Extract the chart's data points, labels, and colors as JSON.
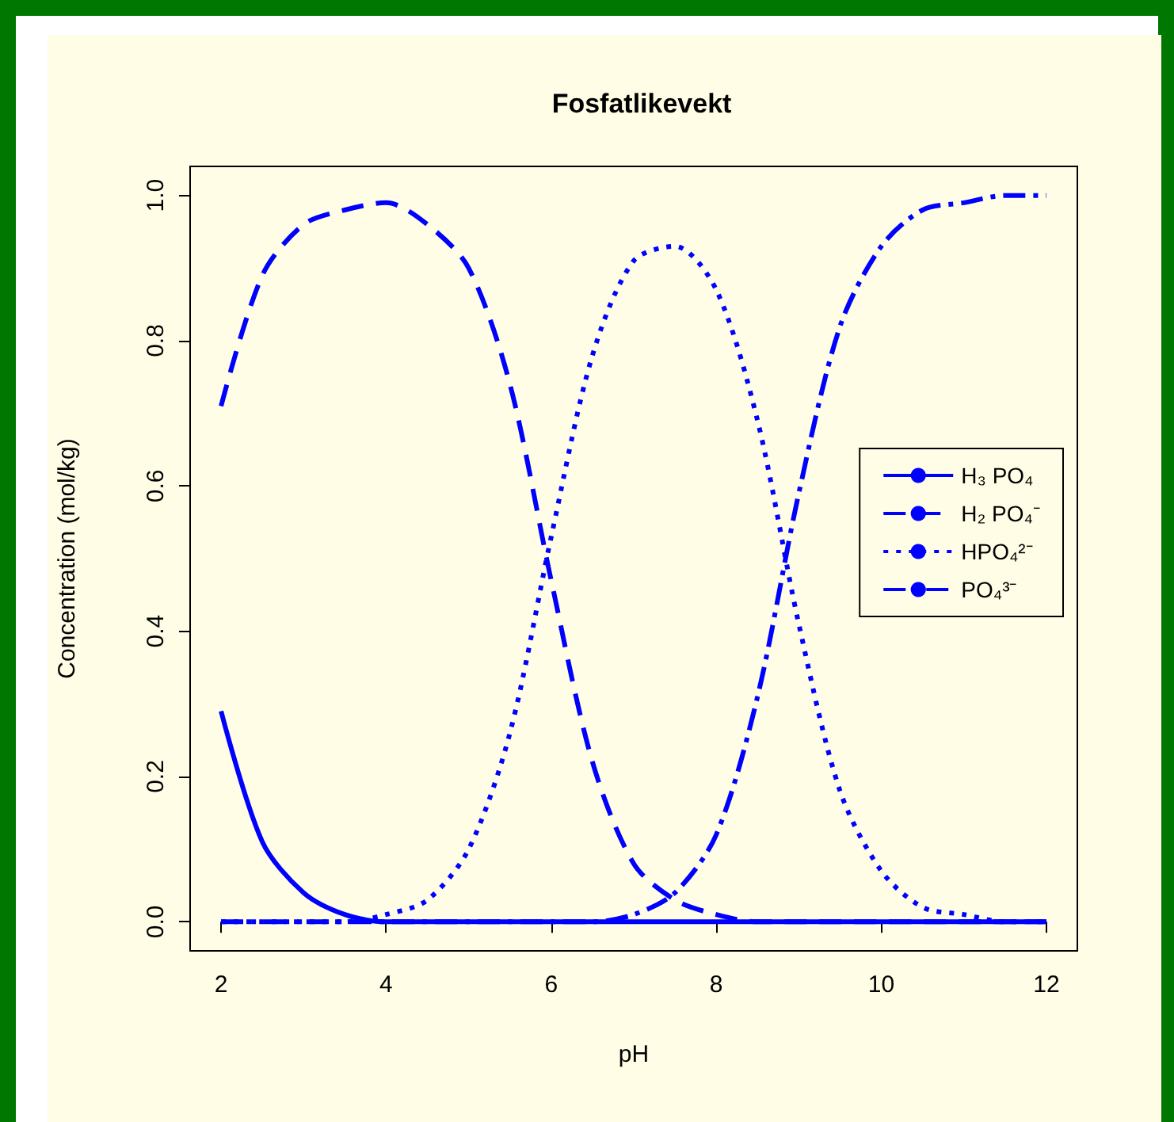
{
  "chart_data": {
    "type": "line",
    "title": "Fosfatlikevekt",
    "xlabel": "pH",
    "ylabel": "Concentration (mol/kg)",
    "x": [
      2,
      2.5,
      3,
      3.5,
      4,
      4.5,
      5,
      5.5,
      6,
      6.5,
      7,
      7.5,
      8,
      8.5,
      9,
      9.5,
      10,
      10.5,
      11,
      11.5,
      12
    ],
    "series": [
      {
        "name": "H₃ PO₄",
        "color": "#0000ff",
        "line_style": "solid",
        "values": [
          0.29,
          0.11,
          0.04,
          0.01,
          0,
          0,
          0,
          0,
          0,
          0,
          0,
          0,
          0,
          0,
          0,
          0,
          0,
          0,
          0,
          0,
          0
        ]
      },
      {
        "name": "H₂ PO₄⁻",
        "color": "#0000ff",
        "line_style": "dashed",
        "values": [
          0.71,
          0.89,
          0.96,
          0.98,
          0.99,
          0.96,
          0.9,
          0.74,
          0.47,
          0.22,
          0.08,
          0.03,
          0.01,
          0,
          0,
          0,
          0,
          0,
          0,
          0,
          0
        ]
      },
      {
        "name": "HPO₄²⁻",
        "color": "#0000ff",
        "line_style": "dotted",
        "values": [
          0,
          0,
          0,
          0,
          0.01,
          0.03,
          0.1,
          0.26,
          0.53,
          0.78,
          0.91,
          0.93,
          0.87,
          0.69,
          0.41,
          0.18,
          0.07,
          0.02,
          0.01,
          0,
          0
        ]
      },
      {
        "name": "PO₄³⁻",
        "color": "#0000ff",
        "line_style": "dashdot",
        "values": [
          0,
          0,
          0,
          0,
          0,
          0,
          0,
          0,
          0,
          0,
          0.01,
          0.04,
          0.12,
          0.31,
          0.59,
          0.82,
          0.93,
          0.98,
          0.99,
          1,
          1
        ]
      }
    ],
    "xlim": [
      1.625,
      12.375
    ],
    "xticks": [
      2,
      4,
      6,
      8,
      10,
      12
    ],
    "ylim": [
      -0.04,
      1.04
    ],
    "yticks": [
      {
        "value": 0,
        "label": "0.0"
      },
      {
        "value": 0.2,
        "label": "0.2"
      },
      {
        "value": 0.4,
        "label": "0.4"
      },
      {
        "value": 0.6,
        "label": "0.6"
      },
      {
        "value": 0.8,
        "label": "0.8"
      },
      {
        "value": 1,
        "label": "1.0"
      }
    ],
    "grid": false,
    "legend": "right",
    "marker": "none"
  }
}
